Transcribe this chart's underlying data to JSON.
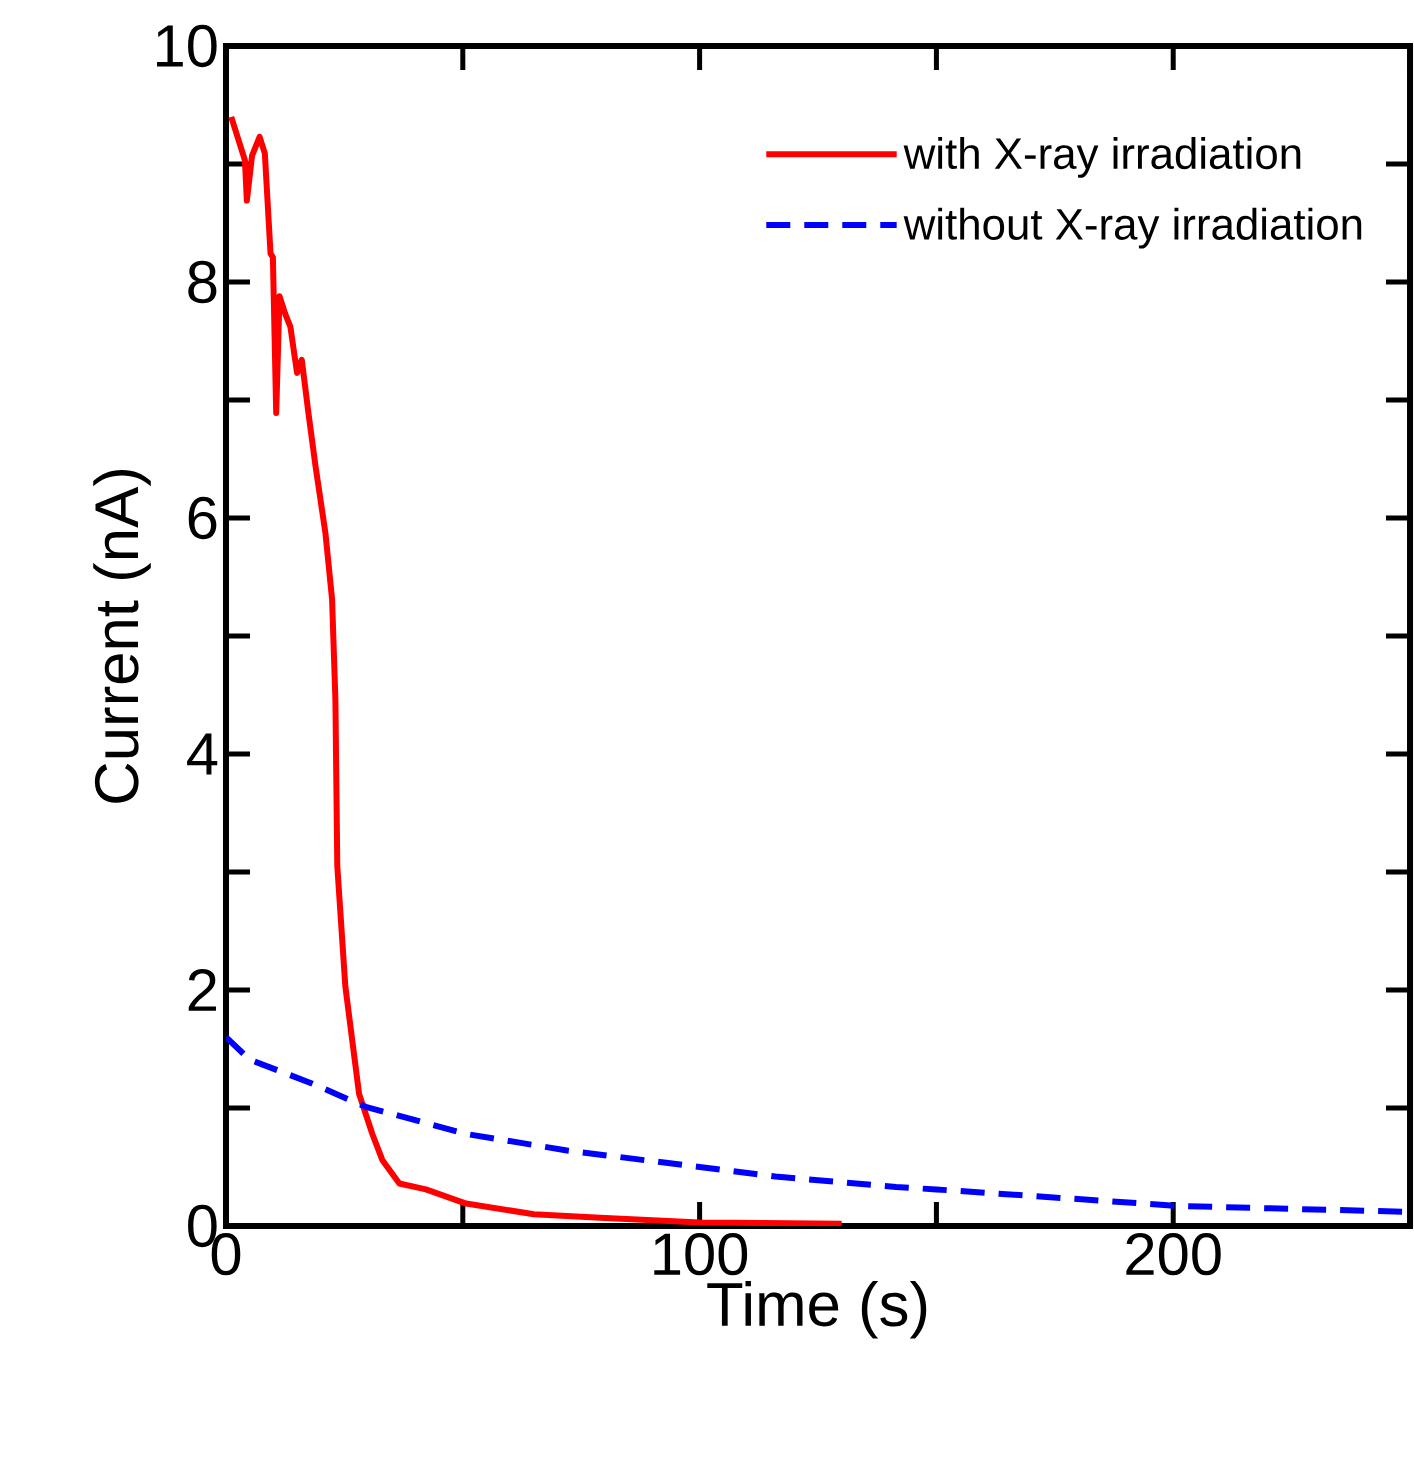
{
  "chart_data": {
    "type": "line",
    "xlabel": "Time (s)",
    "ylabel": "Current (nA)",
    "xlim": [
      0,
      250
    ],
    "ylim": [
      0,
      10
    ],
    "xticks": [
      0,
      {
        "value": 50,
        "label": null
      },
      100,
      {
        "value": 150,
        "label": null
      },
      200,
      {
        "value": 250,
        "label": null
      }
    ],
    "yticks": [
      0,
      {
        "value": 1,
        "label": null
      },
      2,
      {
        "value": 3,
        "label": null
      },
      4,
      {
        "value": 5,
        "label": null
      },
      6,
      {
        "value": 7,
        "label": null
      },
      8,
      {
        "value": 9,
        "label": null
      },
      10
    ],
    "legend": "top right",
    "marker": "none",
    "series": [
      {
        "name": "with X-ray irradiation",
        "color": "#ff0000",
        "line_style": "solid",
        "x": [
          1.1,
          4.0,
          4.4,
          5.5,
          7.1,
          8.2,
          9.4,
          9.9,
          10.6,
          11.3,
          12.5,
          13.6,
          14.2,
          15.0,
          16.0,
          17.4,
          18.9,
          21.0,
          22.4,
          23.1,
          23.5,
          25.2,
          28.1,
          30.9,
          33.0,
          36.6,
          42.2,
          50.7,
          65,
          79,
          100,
          130
        ],
        "values": [
          9.4,
          9.03,
          8.69,
          9.07,
          9.23,
          9.09,
          8.24,
          8.21,
          6.89,
          7.88,
          7.73,
          7.62,
          7.45,
          7.23,
          7.34,
          6.89,
          6.44,
          5.87,
          5.31,
          4.46,
          3.05,
          2.03,
          1.12,
          0.78,
          0.56,
          0.36,
          0.31,
          0.19,
          0.1,
          0.07,
          0.03,
          0.02
        ]
      },
      {
        "name": "without X-ray irradiation",
        "color": "#0000ff",
        "line_style": "dashed",
        "x": [
          0,
          5,
          18,
          29.5,
          50.7,
          72,
          100,
          116,
          141.5,
          150,
          201,
          249.5
        ],
        "values": [
          1.6,
          1.41,
          1.21,
          1.01,
          0.78,
          0.64,
          0.5,
          0.42,
          0.33,
          0.31,
          0.17,
          0.12
        ]
      }
    ]
  }
}
